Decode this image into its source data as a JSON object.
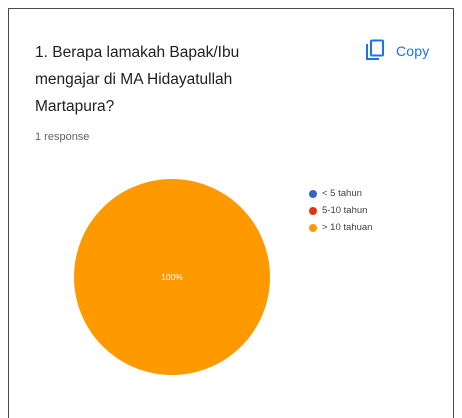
{
  "header": {
    "question": "1. Berapa lamakah Bapak/Ibu mengajar di MA Hidayatullah Martapura?",
    "copy_label": "Copy",
    "responses": "1 response"
  },
  "colors": {
    "accent": "#1a73e8",
    "border": "#4a4a4a"
  },
  "icons": {
    "copy": "copy-icon"
  },
  "chart_data": {
    "type": "pie",
    "categories": [
      "< 5 tahun",
      "5-10 tahun",
      "> 10 tahuan"
    ],
    "values": [
      0,
      0,
      1
    ],
    "colors": [
      "#3366cc",
      "#dc3912",
      "#ff9900"
    ],
    "slice_labels": [
      "",
      "",
      "100%"
    ],
    "legend_position": "right"
  }
}
